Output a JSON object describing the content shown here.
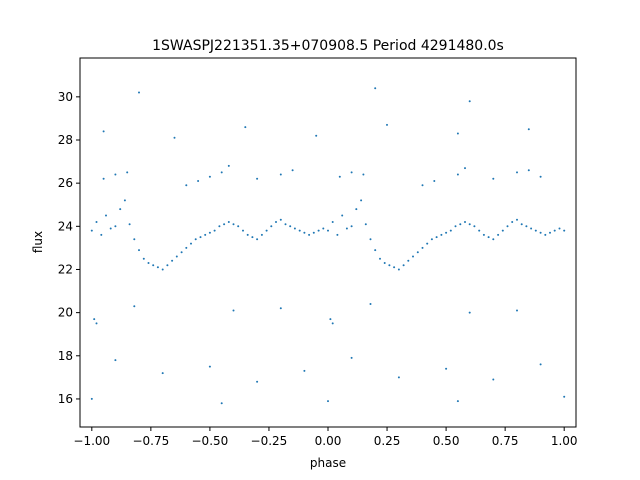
{
  "chart_data": {
    "type": "scatter",
    "title": "1SWASPJ221351.35+070908.5 Period 4291480.0s",
    "xlabel": "phase",
    "ylabel": "flux",
    "xlim": [
      -1.05,
      1.05
    ],
    "ylim": [
      14.7,
      31.8
    ],
    "x_ticks": [
      -1.0,
      -0.75,
      -0.5,
      -0.25,
      0.0,
      0.25,
      0.5,
      0.75,
      1.0
    ],
    "x_tick_labels": [
      "−1.00",
      "−0.75",
      "−0.50",
      "−0.25",
      "0.00",
      "0.25",
      "0.50",
      "0.75",
      "1.00"
    ],
    "y_ticks": [
      16,
      18,
      20,
      22,
      24,
      26,
      28,
      30
    ],
    "y_tick_labels": [
      "16",
      "18",
      "20",
      "22",
      "24",
      "26",
      "28",
      "30"
    ],
    "grid": false,
    "point_color": "#1f77b4",
    "series": [
      {
        "values": [
          [
            -1.0,
            23.8
          ],
          [
            -0.98,
            24.2
          ],
          [
            -0.96,
            23.6
          ],
          [
            -0.94,
            24.5
          ],
          [
            -0.92,
            23.9
          ],
          [
            -0.9,
            24.0
          ],
          [
            -0.88,
            24.8
          ],
          [
            -0.86,
            25.2
          ],
          [
            -0.84,
            24.1
          ],
          [
            -0.82,
            23.4
          ],
          [
            -0.8,
            22.9
          ],
          [
            -0.78,
            22.5
          ],
          [
            -0.76,
            22.3
          ],
          [
            -0.74,
            22.2
          ],
          [
            -0.72,
            22.1
          ],
          [
            -0.7,
            22.0
          ],
          [
            -0.68,
            22.2
          ],
          [
            -0.66,
            22.4
          ],
          [
            -0.64,
            22.6
          ],
          [
            -0.62,
            22.8
          ],
          [
            -0.6,
            23.0
          ],
          [
            -0.58,
            23.2
          ],
          [
            -0.56,
            23.4
          ],
          [
            -0.54,
            23.5
          ],
          [
            -0.52,
            23.6
          ],
          [
            -0.5,
            23.7
          ],
          [
            -0.48,
            23.8
          ],
          [
            -0.46,
            24.0
          ],
          [
            -0.44,
            24.1
          ],
          [
            -0.42,
            24.2
          ],
          [
            -0.4,
            24.1
          ],
          [
            -0.38,
            24.0
          ],
          [
            -0.36,
            23.8
          ],
          [
            -0.34,
            23.6
          ],
          [
            -0.32,
            23.5
          ],
          [
            -0.3,
            23.4
          ],
          [
            -0.28,
            23.6
          ],
          [
            -0.26,
            23.8
          ],
          [
            -0.24,
            24.0
          ],
          [
            -0.22,
            24.2
          ],
          [
            -0.2,
            24.3
          ],
          [
            -0.18,
            24.1
          ],
          [
            -0.16,
            24.0
          ],
          [
            -0.14,
            23.9
          ],
          [
            -0.12,
            23.8
          ],
          [
            -0.1,
            23.7
          ],
          [
            -0.08,
            23.6
          ],
          [
            -0.06,
            23.7
          ],
          [
            -0.04,
            23.8
          ],
          [
            -0.02,
            23.9
          ],
          [
            0.0,
            23.8
          ],
          [
            0.02,
            24.2
          ],
          [
            0.04,
            23.6
          ],
          [
            0.06,
            24.5
          ],
          [
            0.08,
            23.9
          ],
          [
            0.1,
            24.0
          ],
          [
            0.12,
            24.8
          ],
          [
            0.14,
            25.2
          ],
          [
            0.16,
            24.1
          ],
          [
            0.18,
            23.4
          ],
          [
            0.2,
            22.9
          ],
          [
            0.22,
            22.5
          ],
          [
            0.24,
            22.3
          ],
          [
            0.26,
            22.2
          ],
          [
            0.28,
            22.1
          ],
          [
            0.3,
            22.0
          ],
          [
            0.32,
            22.2
          ],
          [
            0.34,
            22.4
          ],
          [
            0.36,
            22.6
          ],
          [
            0.38,
            22.8
          ],
          [
            0.4,
            23.0
          ],
          [
            0.42,
            23.2
          ],
          [
            0.44,
            23.4
          ],
          [
            0.46,
            23.5
          ],
          [
            0.48,
            23.6
          ],
          [
            0.5,
            23.7
          ],
          [
            0.52,
            23.8
          ],
          [
            0.54,
            24.0
          ],
          [
            0.56,
            24.1
          ],
          [
            0.58,
            24.2
          ],
          [
            0.6,
            24.1
          ],
          [
            0.62,
            24.0
          ],
          [
            0.64,
            23.8
          ],
          [
            0.66,
            23.6
          ],
          [
            0.68,
            23.5
          ],
          [
            0.7,
            23.4
          ],
          [
            0.72,
            23.6
          ],
          [
            0.74,
            23.8
          ],
          [
            0.76,
            24.0
          ],
          [
            0.78,
            24.2
          ],
          [
            0.8,
            24.3
          ],
          [
            0.82,
            24.1
          ],
          [
            0.84,
            24.0
          ],
          [
            0.86,
            23.9
          ],
          [
            0.88,
            23.8
          ],
          [
            0.9,
            23.7
          ],
          [
            0.92,
            23.6
          ],
          [
            0.94,
            23.7
          ],
          [
            0.96,
            23.8
          ],
          [
            0.98,
            23.9
          ],
          [
            1.0,
            23.8
          ],
          [
            -0.95,
            26.2
          ],
          [
            -0.9,
            26.4
          ],
          [
            -0.85,
            26.5
          ],
          [
            -0.6,
            25.9
          ],
          [
            -0.55,
            26.1
          ],
          [
            -0.5,
            26.3
          ],
          [
            -0.45,
            26.5
          ],
          [
            -0.42,
            26.8
          ],
          [
            -0.3,
            26.2
          ],
          [
            -0.2,
            26.4
          ],
          [
            -0.15,
            26.6
          ],
          [
            0.05,
            26.3
          ],
          [
            0.1,
            26.5
          ],
          [
            0.15,
            26.4
          ],
          [
            0.4,
            25.9
          ],
          [
            0.45,
            26.1
          ],
          [
            0.55,
            26.4
          ],
          [
            0.58,
            26.7
          ],
          [
            0.7,
            26.2
          ],
          [
            0.8,
            26.5
          ],
          [
            0.85,
            26.6
          ],
          [
            0.9,
            26.3
          ],
          [
            -0.99,
            19.7
          ],
          [
            -0.98,
            19.5
          ],
          [
            0.01,
            19.7
          ],
          [
            0.02,
            19.5
          ],
          [
            -0.4,
            20.1
          ],
          [
            0.6,
            20.0
          ],
          [
            -0.2,
            20.2
          ],
          [
            0.8,
            20.1
          ],
          [
            -0.82,
            20.3
          ],
          [
            0.18,
            20.4
          ],
          [
            -0.9,
            17.8
          ],
          [
            -0.7,
            17.2
          ],
          [
            -0.5,
            17.5
          ],
          [
            -0.3,
            16.8
          ],
          [
            -0.1,
            17.3
          ],
          [
            0.1,
            17.9
          ],
          [
            0.3,
            17.0
          ],
          [
            0.5,
            17.4
          ],
          [
            0.7,
            16.9
          ],
          [
            0.9,
            17.6
          ],
          [
            -0.95,
            28.4
          ],
          [
            -0.65,
            28.1
          ],
          [
            -0.35,
            28.6
          ],
          [
            -0.05,
            28.2
          ],
          [
            0.25,
            28.7
          ],
          [
            0.55,
            28.3
          ],
          [
            0.85,
            28.5
          ],
          [
            -0.8,
            30.2
          ],
          [
            0.2,
            30.4
          ],
          [
            0.6,
            29.8
          ],
          [
            -1.0,
            16.0
          ],
          [
            0.0,
            15.9
          ],
          [
            1.0,
            16.1
          ],
          [
            -0.45,
            15.8
          ],
          [
            0.55,
            15.9
          ]
        ]
      }
    ]
  }
}
